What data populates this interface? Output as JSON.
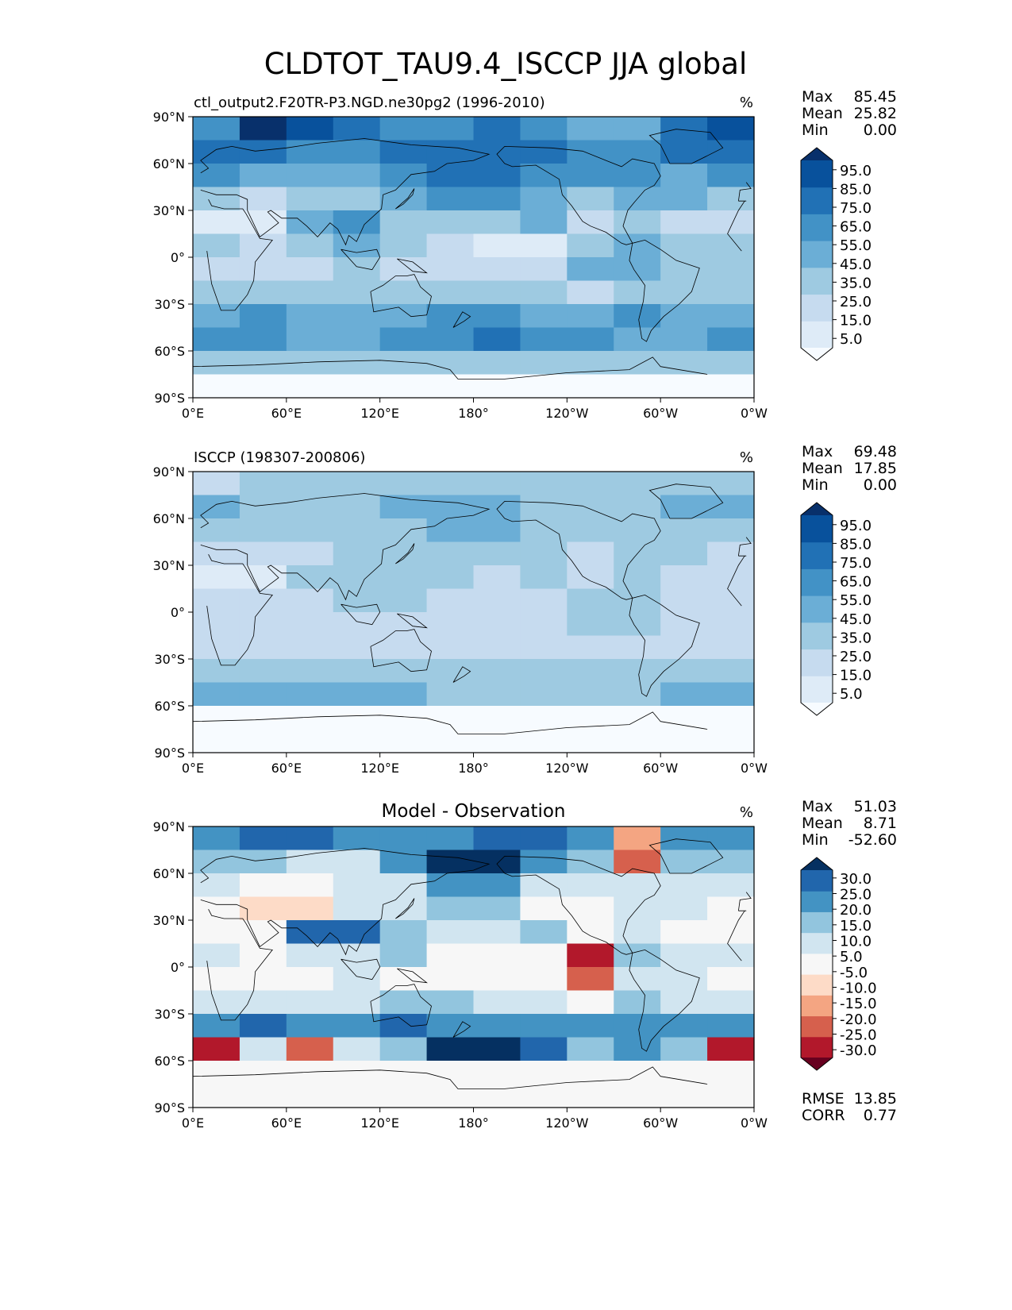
{
  "title": "CLDTOT_TAU9.4_ISCCP JJA global",
  "colors": {
    "seq": [
      "#f7fbff",
      "#deebf7",
      "#c6dbef",
      "#9ecae1",
      "#6baed6",
      "#4292c6",
      "#2171b5",
      "#08519c",
      "#08306b"
    ],
    "div": [
      "#67001f",
      "#b2182b",
      "#d6604d",
      "#f4a582",
      "#fddbc7",
      "#f7f7f7",
      "#d1e5f0",
      "#92c5de",
      "#4393c3",
      "#2166ac",
      "#053061"
    ],
    "land_line": "#000000"
  },
  "chart_data": [
    {
      "type": "heatmap",
      "subtitle": "ctl_output2.F20TR-P3.NGD.ne30pg2 (1996-2010)",
      "units": "%",
      "stats": [
        {
          "label": "Max",
          "value": "85.45"
        },
        {
          "label": "Mean",
          "value": "25.82"
        },
        {
          "label": "Min",
          "value": "0.00"
        }
      ],
      "colorbar": {
        "scale": "seq",
        "ticks": [
          "95.0",
          "85.0",
          "75.0",
          "65.0",
          "55.0",
          "45.0",
          "35.0",
          "25.0",
          "15.0",
          "5.0"
        ]
      },
      "xticks": [
        "0°E",
        "60°E",
        "120°E",
        "180°",
        "120°W",
        "60°W",
        "0°W"
      ],
      "yticks": [
        "90°N",
        "60°N",
        "30°N",
        "0°",
        "30°S",
        "60°S",
        "90°S"
      ],
      "lon_range": [
        0,
        360
      ],
      "lat_range": [
        -90,
        90
      ],
      "field": [
        [
          5,
          8,
          7,
          6,
          5,
          5,
          6,
          5,
          4,
          4,
          6,
          7
        ],
        [
          6,
          6,
          5,
          5,
          6,
          6,
          6,
          6,
          5,
          5,
          6,
          6
        ],
        [
          5,
          4,
          4,
          4,
          5,
          6,
          6,
          5,
          5,
          5,
          4,
          5
        ],
        [
          3,
          2,
          3,
          3,
          4,
          5,
          5,
          4,
          3,
          4,
          4,
          3
        ],
        [
          1,
          1,
          4,
          5,
          3,
          3,
          3,
          4,
          2,
          3,
          2,
          2
        ],
        [
          3,
          2,
          3,
          4,
          3,
          2,
          1,
          1,
          3,
          4,
          3,
          3
        ],
        [
          2,
          2,
          2,
          3,
          2,
          2,
          2,
          2,
          4,
          4,
          3,
          3
        ],
        [
          3,
          3,
          3,
          3,
          3,
          3,
          3,
          3,
          2,
          3,
          3,
          3
        ],
        [
          4,
          5,
          4,
          4,
          4,
          5,
          5,
          4,
          4,
          5,
          4,
          4
        ],
        [
          5,
          5,
          4,
          4,
          5,
          5,
          6,
          5,
          5,
          4,
          4,
          5
        ],
        [
          3,
          3,
          3,
          3,
          3,
          3,
          3,
          3,
          3,
          3,
          3,
          3
        ],
        [
          0,
          0,
          0,
          0,
          0,
          0,
          0,
          0,
          0,
          0,
          0,
          0
        ]
      ]
    },
    {
      "type": "heatmap",
      "subtitle": "ISCCP (198307-200806)",
      "units": "%",
      "stats": [
        {
          "label": "Max",
          "value": "69.48"
        },
        {
          "label": "Mean",
          "value": "17.85"
        },
        {
          "label": "Min",
          "value": "0.00"
        }
      ],
      "colorbar": {
        "scale": "seq",
        "ticks": [
          "95.0",
          "85.0",
          "75.0",
          "65.0",
          "55.0",
          "45.0",
          "35.0",
          "25.0",
          "15.0",
          "5.0"
        ]
      },
      "xticks": [
        "0°E",
        "60°E",
        "120°E",
        "180°",
        "120°W",
        "60°W",
        "0°W"
      ],
      "yticks": [
        "90°N",
        "60°N",
        "30°N",
        "0°",
        "30°S",
        "60°S",
        "90°S"
      ],
      "lon_range": [
        0,
        360
      ],
      "lat_range": [
        -90,
        90
      ],
      "field": [
        [
          2,
          3,
          3,
          3,
          3,
          3,
          3,
          3,
          3,
          3,
          3,
          3
        ],
        [
          4,
          3,
          3,
          3,
          4,
          4,
          4,
          3,
          3,
          3,
          4,
          4
        ],
        [
          3,
          3,
          3,
          3,
          3,
          4,
          4,
          3,
          3,
          3,
          3,
          3
        ],
        [
          2,
          2,
          2,
          3,
          3,
          3,
          3,
          3,
          2,
          3,
          3,
          2
        ],
        [
          1,
          1,
          3,
          3,
          3,
          3,
          2,
          3,
          2,
          3,
          2,
          2
        ],
        [
          2,
          2,
          2,
          3,
          3,
          2,
          2,
          2,
          3,
          3,
          2,
          2
        ],
        [
          2,
          2,
          2,
          2,
          2,
          2,
          2,
          2,
          3,
          3,
          2,
          2
        ],
        [
          2,
          2,
          2,
          2,
          2,
          2,
          2,
          2,
          2,
          2,
          2,
          2
        ],
        [
          3,
          3,
          3,
          3,
          3,
          3,
          3,
          3,
          3,
          3,
          3,
          3
        ],
        [
          4,
          4,
          4,
          4,
          4,
          3,
          3,
          3,
          3,
          3,
          4,
          4
        ],
        [
          0,
          0,
          0,
          0,
          0,
          0,
          0,
          0,
          0,
          0,
          0,
          0
        ],
        [
          0,
          0,
          0,
          0,
          0,
          0,
          0,
          0,
          0,
          0,
          0,
          0
        ]
      ]
    },
    {
      "type": "heatmap",
      "subtitle": "Model - Observation",
      "units": "%",
      "stats": [
        {
          "label": "Max",
          "value": "51.03"
        },
        {
          "label": "Mean",
          "value": "8.71"
        },
        {
          "label": "Min",
          "value": "-52.60"
        }
      ],
      "colorbar": {
        "scale": "div",
        "ticks": [
          "30.0",
          "25.0",
          "20.0",
          "15.0",
          "10.0",
          "5.0",
          "-5.0",
          "-10.0",
          "-15.0",
          "-20.0",
          "-25.0",
          "-30.0"
        ]
      },
      "footer_stats": [
        {
          "label": "RMSE",
          "value": "13.85"
        },
        {
          "label": "CORR",
          "value": "0.77"
        }
      ],
      "xticks": [
        "0°E",
        "60°E",
        "120°E",
        "180°",
        "120°W",
        "60°W",
        "0°W"
      ],
      "yticks": [
        "90°N",
        "60°N",
        "30°N",
        "0°",
        "30°S",
        "60°S",
        "90°S"
      ],
      "lon_range": [
        0,
        360
      ],
      "lat_range": [
        -90,
        90
      ],
      "field": [
        [
          8,
          9,
          9,
          8,
          8,
          8,
          9,
          9,
          8,
          3,
          8,
          8
        ],
        [
          7,
          7,
          6,
          6,
          8,
          10,
          10,
          8,
          7,
          2,
          7,
          7
        ],
        [
          6,
          5,
          5,
          6,
          6,
          8,
          8,
          6,
          6,
          6,
          6,
          6
        ],
        [
          5,
          4,
          4,
          6,
          6,
          7,
          7,
          5,
          5,
          6,
          6,
          5
        ],
        [
          5,
          5,
          9,
          9,
          7,
          6,
          6,
          7,
          5,
          6,
          5,
          5
        ],
        [
          6,
          5,
          6,
          6,
          7,
          5,
          5,
          5,
          1,
          7,
          6,
          6
        ],
        [
          5,
          5,
          5,
          6,
          5,
          5,
          5,
          5,
          2,
          6,
          6,
          5
        ],
        [
          6,
          6,
          6,
          6,
          7,
          7,
          6,
          6,
          5,
          7,
          6,
          6
        ],
        [
          8,
          9,
          8,
          8,
          9,
          8,
          8,
          8,
          8,
          8,
          8,
          8
        ],
        [
          1,
          6,
          2,
          6,
          7,
          10,
          10,
          9,
          7,
          8,
          7,
          1
        ],
        [
          5,
          5,
          5,
          5,
          5,
          5,
          5,
          5,
          5,
          5,
          5,
          5
        ],
        [
          5,
          5,
          5,
          5,
          5,
          5,
          5,
          5,
          5,
          5,
          5,
          5
        ]
      ]
    }
  ]
}
